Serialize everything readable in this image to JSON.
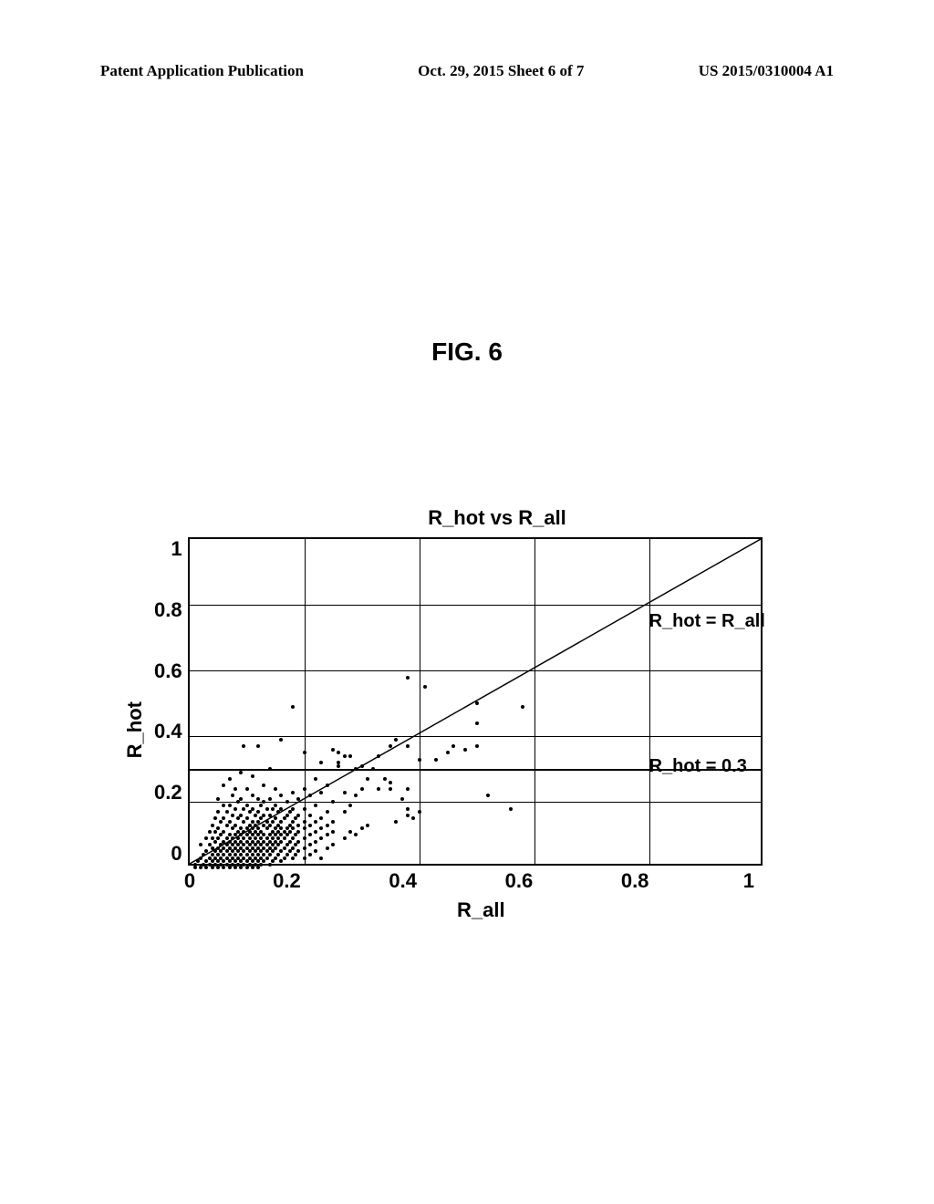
{
  "header": {
    "left": "Patent Application Publication",
    "center": "Oct. 29, 2015  Sheet 6 of 7",
    "right": "US 2015/0310004 A1"
  },
  "figure_label": "FIG. 6",
  "chart": {
    "type": "scatter",
    "title": "R_hot vs R_all",
    "xlabel": "R_all",
    "ylabel": "R_hot",
    "xlim": [
      0,
      1
    ],
    "ylim": [
      0,
      1
    ],
    "xtick_step": 0.2,
    "ytick_step": 0.2,
    "xticks": [
      "0",
      "0.2",
      "0.4",
      "0.6",
      "0.8",
      "1"
    ],
    "yticks": [
      "1",
      "0.8",
      "0.6",
      "0.4",
      "0.2",
      "0"
    ],
    "grid_color": "#000000",
    "background_color": "#ffffff",
    "border_color": "#000000",
    "border_width": 2,
    "marker_color": "#000000",
    "marker_size": 4,
    "diagonal_line": {
      "from": [
        0,
        0
      ],
      "to": [
        1,
        1
      ],
      "color": "#000000",
      "width": 1.5,
      "label": "R_hot = R_all",
      "label_pos": [
        0.8,
        0.78
      ]
    },
    "reference_line": {
      "y": 0.3,
      "color": "#000000",
      "width": 2,
      "label": "R_hot = 0.3",
      "label_pos": [
        0.8,
        0.34
      ]
    },
    "title_fontsize": 22,
    "label_fontsize": 22,
    "tick_fontsize": 22,
    "font_family": "Arial",
    "points": [
      [
        0.01,
        0.01
      ],
      [
        0.01,
        0.02
      ],
      [
        0.015,
        0.03
      ],
      [
        0.02,
        0.01
      ],
      [
        0.02,
        0.04
      ],
      [
        0.02,
        0.08
      ],
      [
        0.025,
        0.02
      ],
      [
        0.025,
        0.05
      ],
      [
        0.03,
        0.01
      ],
      [
        0.03,
        0.03
      ],
      [
        0.03,
        0.06
      ],
      [
        0.03,
        0.1
      ],
      [
        0.035,
        0.02
      ],
      [
        0.035,
        0.04
      ],
      [
        0.035,
        0.08
      ],
      [
        0.035,
        0.12
      ],
      [
        0.04,
        0.01
      ],
      [
        0.04,
        0.03
      ],
      [
        0.04,
        0.05
      ],
      [
        0.04,
        0.07
      ],
      [
        0.04,
        0.1
      ],
      [
        0.04,
        0.14
      ],
      [
        0.045,
        0.02
      ],
      [
        0.045,
        0.04
      ],
      [
        0.045,
        0.06
      ],
      [
        0.045,
        0.09
      ],
      [
        0.045,
        0.12
      ],
      [
        0.045,
        0.16
      ],
      [
        0.05,
        0.01
      ],
      [
        0.05,
        0.03
      ],
      [
        0.05,
        0.05
      ],
      [
        0.05,
        0.07
      ],
      [
        0.05,
        0.1
      ],
      [
        0.05,
        0.13
      ],
      [
        0.05,
        0.18
      ],
      [
        0.05,
        0.22
      ],
      [
        0.055,
        0.02
      ],
      [
        0.055,
        0.04
      ],
      [
        0.055,
        0.06
      ],
      [
        0.055,
        0.08
      ],
      [
        0.055,
        0.11
      ],
      [
        0.055,
        0.15
      ],
      [
        0.06,
        0.01
      ],
      [
        0.06,
        0.03
      ],
      [
        0.06,
        0.05
      ],
      [
        0.06,
        0.07
      ],
      [
        0.06,
        0.09
      ],
      [
        0.06,
        0.12
      ],
      [
        0.06,
        0.16
      ],
      [
        0.06,
        0.2
      ],
      [
        0.06,
        0.26
      ],
      [
        0.065,
        0.02
      ],
      [
        0.065,
        0.04
      ],
      [
        0.065,
        0.06
      ],
      [
        0.065,
        0.08
      ],
      [
        0.065,
        0.1
      ],
      [
        0.065,
        0.14
      ],
      [
        0.065,
        0.18
      ],
      [
        0.07,
        0.01
      ],
      [
        0.07,
        0.03
      ],
      [
        0.07,
        0.05
      ],
      [
        0.07,
        0.07
      ],
      [
        0.07,
        0.09
      ],
      [
        0.07,
        0.11
      ],
      [
        0.07,
        0.15
      ],
      [
        0.07,
        0.2
      ],
      [
        0.07,
        0.28
      ],
      [
        0.075,
        0.02
      ],
      [
        0.075,
        0.04
      ],
      [
        0.075,
        0.06
      ],
      [
        0.075,
        0.08
      ],
      [
        0.075,
        0.1
      ],
      [
        0.075,
        0.13
      ],
      [
        0.075,
        0.17
      ],
      [
        0.075,
        0.23
      ],
      [
        0.08,
        0.01
      ],
      [
        0.08,
        0.03
      ],
      [
        0.08,
        0.05
      ],
      [
        0.08,
        0.07
      ],
      [
        0.08,
        0.09
      ],
      [
        0.08,
        0.11
      ],
      [
        0.08,
        0.14
      ],
      [
        0.08,
        0.19
      ],
      [
        0.08,
        0.25
      ],
      [
        0.085,
        0.02
      ],
      [
        0.085,
        0.04
      ],
      [
        0.085,
        0.06
      ],
      [
        0.085,
        0.08
      ],
      [
        0.085,
        0.1
      ],
      [
        0.085,
        0.12
      ],
      [
        0.085,
        0.16
      ],
      [
        0.085,
        0.21
      ],
      [
        0.09,
        0.01
      ],
      [
        0.09,
        0.03
      ],
      [
        0.09,
        0.05
      ],
      [
        0.09,
        0.07
      ],
      [
        0.09,
        0.09
      ],
      [
        0.09,
        0.11
      ],
      [
        0.09,
        0.13
      ],
      [
        0.09,
        0.17
      ],
      [
        0.09,
        0.22
      ],
      [
        0.09,
        0.3
      ],
      [
        0.095,
        0.38
      ],
      [
        0.095,
        0.02
      ],
      [
        0.095,
        0.04
      ],
      [
        0.095,
        0.06
      ],
      [
        0.095,
        0.08
      ],
      [
        0.095,
        0.1
      ],
      [
        0.095,
        0.12
      ],
      [
        0.095,
        0.15
      ],
      [
        0.095,
        0.19
      ],
      [
        0.1,
        0.01
      ],
      [
        0.1,
        0.03
      ],
      [
        0.1,
        0.05
      ],
      [
        0.1,
        0.07
      ],
      [
        0.1,
        0.09
      ],
      [
        0.1,
        0.11
      ],
      [
        0.1,
        0.13
      ],
      [
        0.1,
        0.16
      ],
      [
        0.1,
        0.2
      ],
      [
        0.1,
        0.25
      ],
      [
        0.105,
        0.02
      ],
      [
        0.105,
        0.04
      ],
      [
        0.105,
        0.06
      ],
      [
        0.105,
        0.08
      ],
      [
        0.105,
        0.1
      ],
      [
        0.105,
        0.12
      ],
      [
        0.105,
        0.14
      ],
      [
        0.105,
        0.18
      ],
      [
        0.11,
        0.01
      ],
      [
        0.11,
        0.03
      ],
      [
        0.11,
        0.05
      ],
      [
        0.11,
        0.07
      ],
      [
        0.11,
        0.09
      ],
      [
        0.11,
        0.11
      ],
      [
        0.11,
        0.13
      ],
      [
        0.11,
        0.15
      ],
      [
        0.11,
        0.19
      ],
      [
        0.11,
        0.23
      ],
      [
        0.11,
        0.29
      ],
      [
        0.115,
        0.02
      ],
      [
        0.115,
        0.04
      ],
      [
        0.115,
        0.06
      ],
      [
        0.115,
        0.08
      ],
      [
        0.115,
        0.1
      ],
      [
        0.115,
        0.12
      ],
      [
        0.115,
        0.14
      ],
      [
        0.115,
        0.17
      ],
      [
        0.12,
        0.01
      ],
      [
        0.12,
        0.03
      ],
      [
        0.12,
        0.05
      ],
      [
        0.12,
        0.07
      ],
      [
        0.12,
        0.09
      ],
      [
        0.12,
        0.11
      ],
      [
        0.12,
        0.13
      ],
      [
        0.12,
        0.15
      ],
      [
        0.12,
        0.18
      ],
      [
        0.12,
        0.22
      ],
      [
        0.12,
        0.38
      ],
      [
        0.125,
        0.02
      ],
      [
        0.125,
        0.04
      ],
      [
        0.125,
        0.06
      ],
      [
        0.125,
        0.08
      ],
      [
        0.125,
        0.1
      ],
      [
        0.125,
        0.12
      ],
      [
        0.125,
        0.16
      ],
      [
        0.125,
        0.2
      ],
      [
        0.13,
        0.03
      ],
      [
        0.13,
        0.05
      ],
      [
        0.13,
        0.07
      ],
      [
        0.13,
        0.09
      ],
      [
        0.13,
        0.11
      ],
      [
        0.13,
        0.14
      ],
      [
        0.13,
        0.17
      ],
      [
        0.13,
        0.21
      ],
      [
        0.13,
        0.26
      ],
      [
        0.135,
        0.04
      ],
      [
        0.135,
        0.06
      ],
      [
        0.135,
        0.08
      ],
      [
        0.135,
        0.1
      ],
      [
        0.135,
        0.13
      ],
      [
        0.135,
        0.15
      ],
      [
        0.135,
        0.19
      ],
      [
        0.14,
        0.02
      ],
      [
        0.14,
        0.05
      ],
      [
        0.14,
        0.07
      ],
      [
        0.14,
        0.09
      ],
      [
        0.14,
        0.11
      ],
      [
        0.14,
        0.14
      ],
      [
        0.14,
        0.17
      ],
      [
        0.14,
        0.22
      ],
      [
        0.14,
        0.31
      ],
      [
        0.145,
        0.03
      ],
      [
        0.145,
        0.06
      ],
      [
        0.145,
        0.08
      ],
      [
        0.145,
        0.1
      ],
      [
        0.145,
        0.12
      ],
      [
        0.145,
        0.15
      ],
      [
        0.145,
        0.19
      ],
      [
        0.15,
        0.04
      ],
      [
        0.15,
        0.07
      ],
      [
        0.15,
        0.09
      ],
      [
        0.15,
        0.11
      ],
      [
        0.15,
        0.13
      ],
      [
        0.15,
        0.16
      ],
      [
        0.15,
        0.2
      ],
      [
        0.15,
        0.25
      ],
      [
        0.155,
        0.05
      ],
      [
        0.155,
        0.08
      ],
      [
        0.155,
        0.1
      ],
      [
        0.155,
        0.12
      ],
      [
        0.155,
        0.14
      ],
      [
        0.155,
        0.18
      ],
      [
        0.16,
        0.03
      ],
      [
        0.16,
        0.06
      ],
      [
        0.16,
        0.09
      ],
      [
        0.16,
        0.11
      ],
      [
        0.16,
        0.13
      ],
      [
        0.16,
        0.15
      ],
      [
        0.16,
        0.19
      ],
      [
        0.16,
        0.23
      ],
      [
        0.16,
        0.4
      ],
      [
        0.165,
        0.04
      ],
      [
        0.165,
        0.07
      ],
      [
        0.165,
        0.1
      ],
      [
        0.165,
        0.12
      ],
      [
        0.165,
        0.16
      ],
      [
        0.17,
        0.05
      ],
      [
        0.17,
        0.08
      ],
      [
        0.17,
        0.11
      ],
      [
        0.17,
        0.13
      ],
      [
        0.17,
        0.17
      ],
      [
        0.17,
        0.21
      ],
      [
        0.175,
        0.06
      ],
      [
        0.175,
        0.09
      ],
      [
        0.175,
        0.12
      ],
      [
        0.175,
        0.14
      ],
      [
        0.175,
        0.18
      ],
      [
        0.18,
        0.04
      ],
      [
        0.18,
        0.07
      ],
      [
        0.18,
        0.1
      ],
      [
        0.18,
        0.13
      ],
      [
        0.18,
        0.15
      ],
      [
        0.18,
        0.19
      ],
      [
        0.18,
        0.24
      ],
      [
        0.18,
        0.5
      ],
      [
        0.185,
        0.05
      ],
      [
        0.185,
        0.08
      ],
      [
        0.185,
        0.11
      ],
      [
        0.185,
        0.16
      ],
      [
        0.19,
        0.06
      ],
      [
        0.19,
        0.09
      ],
      [
        0.19,
        0.12
      ],
      [
        0.19,
        0.14
      ],
      [
        0.19,
        0.17
      ],
      [
        0.19,
        0.22
      ],
      [
        0.2,
        0.04
      ],
      [
        0.2,
        0.07
      ],
      [
        0.2,
        0.1
      ],
      [
        0.2,
        0.13
      ],
      [
        0.2,
        0.15
      ],
      [
        0.2,
        0.19
      ],
      [
        0.2,
        0.25
      ],
      [
        0.2,
        0.36
      ],
      [
        0.21,
        0.05
      ],
      [
        0.21,
        0.08
      ],
      [
        0.21,
        0.11
      ],
      [
        0.21,
        0.14
      ],
      [
        0.21,
        0.17
      ],
      [
        0.21,
        0.23
      ],
      [
        0.22,
        0.06
      ],
      [
        0.22,
        0.09
      ],
      [
        0.22,
        0.12
      ],
      [
        0.22,
        0.15
      ],
      [
        0.22,
        0.2
      ],
      [
        0.22,
        0.28
      ],
      [
        0.23,
        0.04
      ],
      [
        0.23,
        0.1
      ],
      [
        0.23,
        0.13
      ],
      [
        0.23,
        0.16
      ],
      [
        0.23,
        0.24
      ],
      [
        0.23,
        0.33
      ],
      [
        0.24,
        0.07
      ],
      [
        0.24,
        0.11
      ],
      [
        0.24,
        0.14
      ],
      [
        0.24,
        0.18
      ],
      [
        0.24,
        0.26
      ],
      [
        0.25,
        0.08
      ],
      [
        0.25,
        0.12
      ],
      [
        0.25,
        0.15
      ],
      [
        0.25,
        0.21
      ],
      [
        0.25,
        0.37
      ],
      [
        0.26,
        0.32
      ],
      [
        0.26,
        0.33
      ],
      [
        0.26,
        0.36
      ],
      [
        0.27,
        0.1
      ],
      [
        0.27,
        0.18
      ],
      [
        0.27,
        0.24
      ],
      [
        0.27,
        0.35
      ],
      [
        0.28,
        0.35
      ],
      [
        0.28,
        0.12
      ],
      [
        0.28,
        0.2
      ],
      [
        0.29,
        0.11
      ],
      [
        0.29,
        0.23
      ],
      [
        0.29,
        0.31
      ],
      [
        0.3,
        0.32
      ],
      [
        0.3,
        0.13
      ],
      [
        0.3,
        0.25
      ],
      [
        0.31,
        0.14
      ],
      [
        0.31,
        0.28
      ],
      [
        0.32,
        0.31
      ],
      [
        0.33,
        0.25
      ],
      [
        0.33,
        0.35
      ],
      [
        0.34,
        0.28
      ],
      [
        0.35,
        0.38
      ],
      [
        0.35,
        0.25
      ],
      [
        0.35,
        0.27
      ],
      [
        0.36,
        0.4
      ],
      [
        0.36,
        0.15
      ],
      [
        0.37,
        0.22
      ],
      [
        0.38,
        0.25
      ],
      [
        0.38,
        0.38
      ],
      [
        0.38,
        0.17
      ],
      [
        0.38,
        0.19
      ],
      [
        0.38,
        0.59
      ],
      [
        0.39,
        0.16
      ],
      [
        0.4,
        0.18
      ],
      [
        0.4,
        0.34
      ],
      [
        0.41,
        0.56
      ],
      [
        0.43,
        0.34
      ],
      [
        0.45,
        0.36
      ],
      [
        0.46,
        0.38
      ],
      [
        0.48,
        0.37
      ],
      [
        0.5,
        0.45
      ],
      [
        0.5,
        0.51
      ],
      [
        0.5,
        0.38
      ],
      [
        0.52,
        0.23
      ],
      [
        0.56,
        0.19
      ],
      [
        0.58,
        0.5
      ]
    ]
  }
}
